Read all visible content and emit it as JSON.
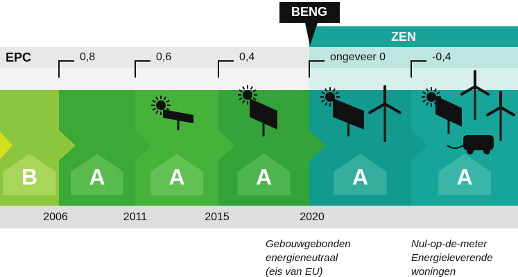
{
  "header": {
    "beng": "BENG",
    "zen": "ZEN",
    "epc": "EPC"
  },
  "epc_values": [
    "0,8",
    "0,6",
    "0,4",
    "ongeveer 0",
    "-0,4"
  ],
  "labels": [
    "B",
    "A",
    "A",
    "A",
    "A",
    "A"
  ],
  "years": [
    "2006",
    "2011",
    "2015",
    "2020"
  ],
  "captions": [
    [
      "Gebouwgebonden",
      "energieneutraal",
      "(eis van EU)"
    ],
    [
      "Nul-op-de-meter",
      "Energieleverende",
      "woningen"
    ]
  ]
}
